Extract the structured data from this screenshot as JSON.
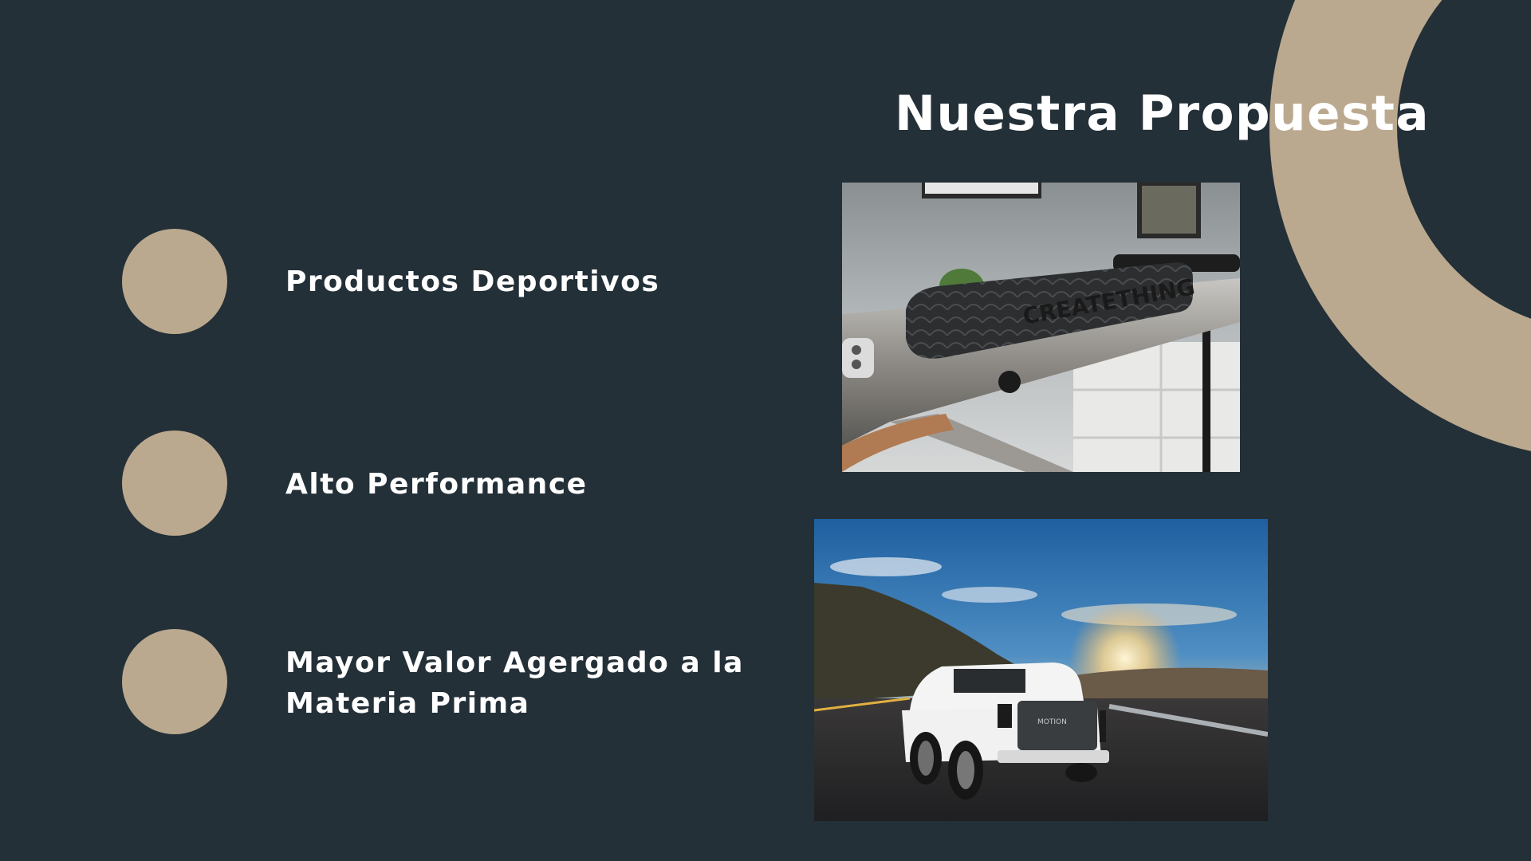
{
  "slide": {
    "title": "Nuestra Propuesta",
    "bullets": [
      {
        "line1": "Productos Deportivos"
      },
      {
        "line1": "Alto Performance"
      },
      {
        "line1": "Mayor Valor Agergado a la",
        "line2": "Materia Prima"
      }
    ],
    "images": {
      "bike": {
        "icon": "bicycle-handlebar-grip-photo",
        "grip_text": "CREATETHING"
      },
      "truck": {
        "icon": "pickup-truck-sunset-photo",
        "badge_text": "MOTION"
      }
    },
    "colors": {
      "background": "#243038",
      "accent": "#bba98f",
      "text": "#ffffff"
    }
  }
}
